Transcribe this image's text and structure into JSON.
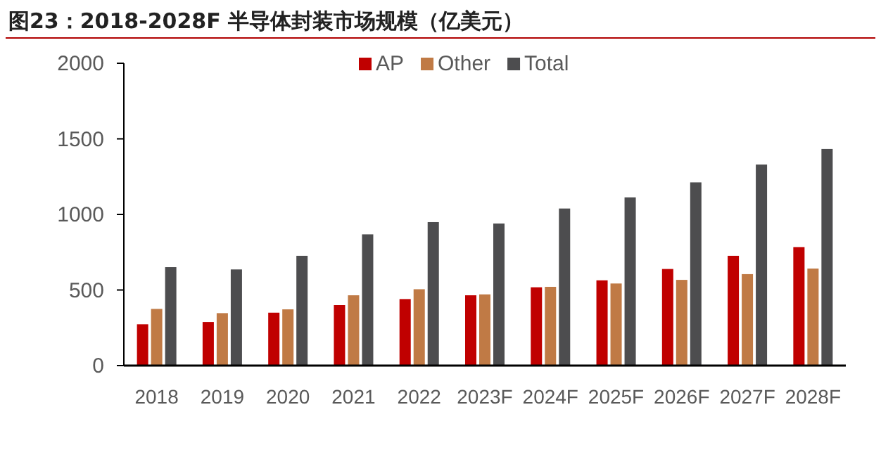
{
  "chart_data": {
    "type": "bar",
    "title": "图23：2018-2028F 半导体封装市场规模（亿美元）",
    "categories": [
      "2018",
      "2019",
      "2020",
      "2021",
      "2022",
      "2023F",
      "2024F",
      "2025F",
      "2026F",
      "2027F",
      "2028F"
    ],
    "series": [
      {
        "name": "AP",
        "color": "#c00000",
        "values": [
          273,
          288,
          350,
          400,
          440,
          465,
          518,
          564,
          639,
          726,
          784
        ]
      },
      {
        "name": "Other",
        "color": "#c07a45",
        "values": [
          375,
          347,
          372,
          465,
          505,
          471,
          521,
          543,
          567,
          605,
          642
        ]
      },
      {
        "name": "Total",
        "color": "#4d4d4f",
        "values": [
          651,
          636,
          726,
          868,
          949,
          940,
          1039,
          1113,
          1212,
          1330,
          1433
        ]
      }
    ],
    "ylim": [
      0,
      2000
    ],
    "yticks": [
      0,
      500,
      1000,
      1500,
      2000
    ],
    "grid": false,
    "legend": "top"
  }
}
